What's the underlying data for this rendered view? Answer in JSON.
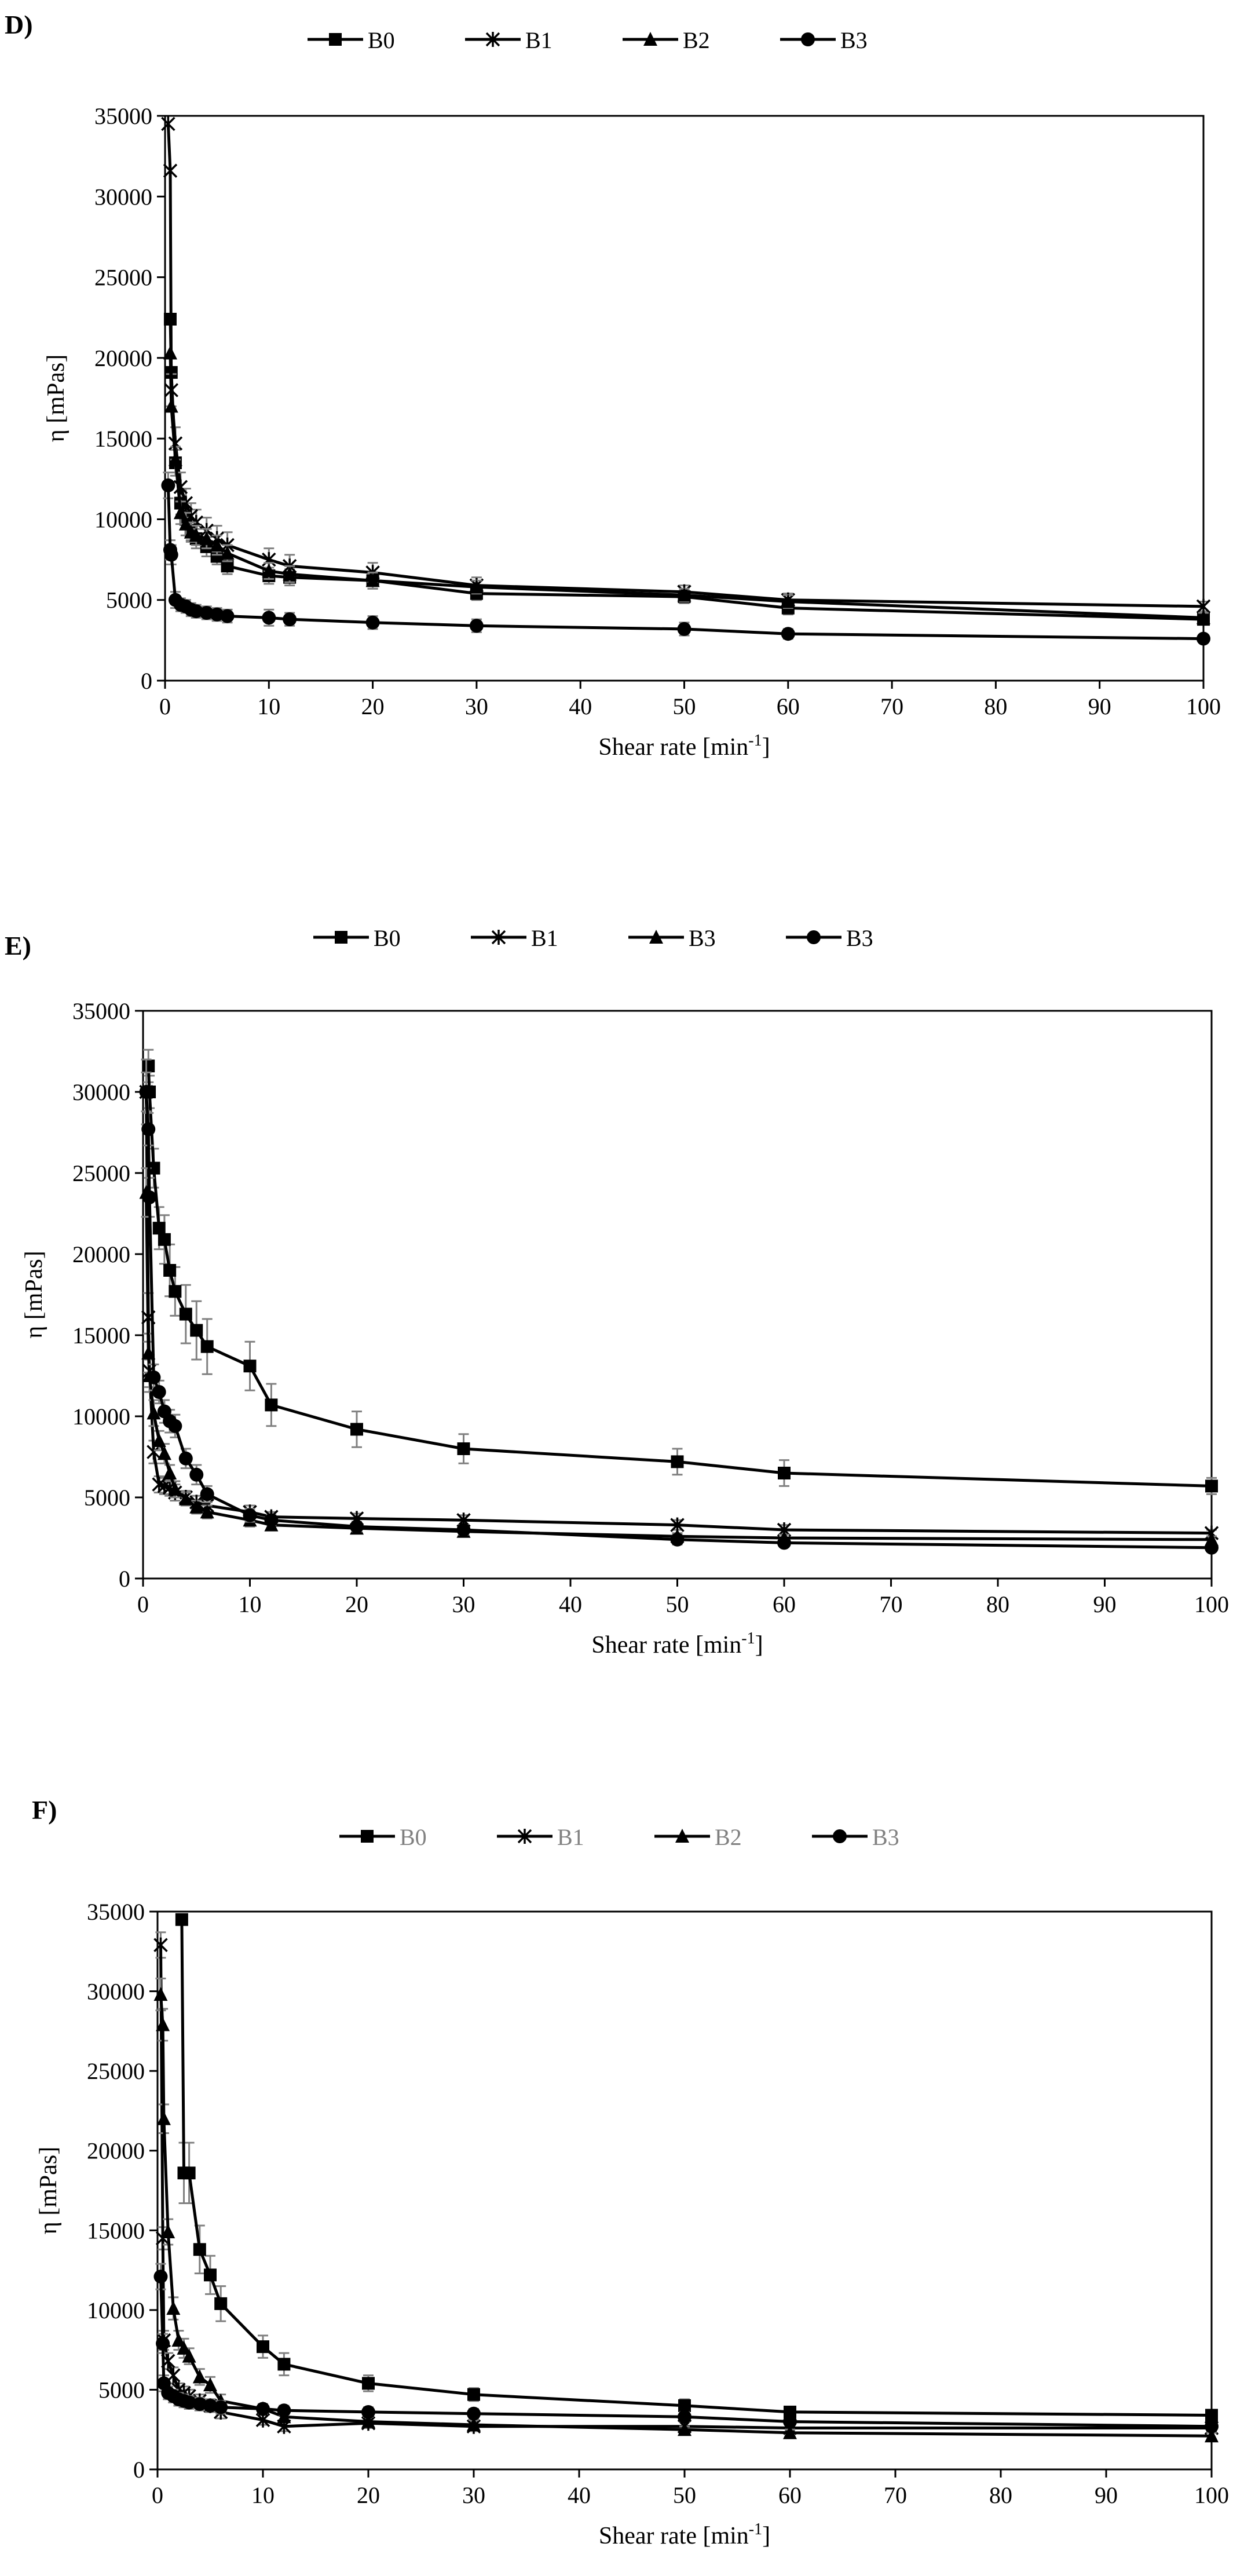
{
  "colors": {
    "line": "#000000",
    "marker": "#000000",
    "errorbar": "#808080",
    "legend_text_dark": "#000000",
    "legend_text_gray": "#808080"
  },
  "chart_data": [
    {
      "type": "line",
      "panel_label": "D)",
      "title": "",
      "xlabel": "Shear rate [min",
      "xlabel_sup": "-1",
      "xlabel_suffix": "]",
      "ylabel": "η [mPas]",
      "xlim": [
        0,
        100
      ],
      "ylim": [
        0,
        35000
      ],
      "x_ticks": [
        "0",
        "10",
        "20",
        "30",
        "40",
        "50",
        "60",
        "70",
        "80",
        "90",
        "100"
      ],
      "y_ticks": [
        "0",
        "5000",
        "10000",
        "15000",
        "20000",
        "25000",
        "30000",
        "35000"
      ],
      "legend_position": "top",
      "legend_text_color": "dark",
      "series": [
        {
          "name": "B0",
          "marker": "square",
          "x": [
            0.5,
            0.6,
            1,
            1.5,
            2,
            2.5,
            3,
            4,
            5,
            6,
            10,
            12,
            20,
            30,
            50,
            60,
            100
          ],
          "y": [
            22400,
            19100,
            13500,
            11000,
            10000,
            9300,
            8800,
            8300,
            7700,
            7100,
            6500,
            6400,
            6200,
            5400,
            5200,
            4500,
            3800
          ],
          "err": [
            0,
            0,
            800,
            700,
            600,
            600,
            600,
            600,
            500,
            500,
            500,
            500,
            500,
            400,
            400,
            400,
            300
          ]
        },
        {
          "name": "B1",
          "marker": "star",
          "x": [
            0.3,
            0.5,
            0.6,
            1,
            1.5,
            2,
            2.5,
            3,
            4,
            5,
            6,
            10,
            12,
            20,
            30,
            50,
            60,
            100
          ],
          "y": [
            34500,
            31600,
            18000,
            14700,
            12000,
            11000,
            10200,
            9800,
            9300,
            8800,
            8400,
            7500,
            7100,
            6700,
            5900,
            5500,
            5000,
            4600
          ],
          "err": [
            0,
            0,
            1000,
            1000,
            900,
            900,
            800,
            800,
            800,
            800,
            800,
            700,
            700,
            600,
            500,
            400,
            400,
            300
          ]
        },
        {
          "name": "B2",
          "marker": "triangle",
          "x": [
            0.5,
            0.6,
            1,
            1.5,
            2,
            2.5,
            3,
            4,
            5,
            6,
            10,
            12,
            20,
            30,
            50,
            60,
            100
          ],
          "y": [
            20300,
            17000,
            13700,
            10400,
            9700,
            9200,
            9000,
            8800,
            8400,
            7900,
            6800,
            6600,
            6200,
            5800,
            5300,
            4900,
            3900
          ],
          "err": [
            0,
            0,
            800,
            700,
            700,
            600,
            600,
            600,
            600,
            500,
            500,
            500,
            500,
            400,
            400,
            400,
            300
          ]
        },
        {
          "name": "B3",
          "marker": "circle",
          "x": [
            0.3,
            0.5,
            0.6,
            1,
            1.5,
            2,
            2.5,
            3,
            4,
            5,
            6,
            10,
            12,
            20,
            30,
            50,
            60,
            100
          ],
          "y": [
            12100,
            8100,
            7800,
            5000,
            4700,
            4600,
            4400,
            4300,
            4200,
            4100,
            4000,
            3900,
            3800,
            3600,
            3400,
            3200,
            2900,
            2600
          ],
          "err": [
            800,
            600,
            600,
            500,
            400,
            400,
            400,
            400,
            400,
            400,
            400,
            500,
            400,
            400,
            400,
            400,
            300,
            200
          ]
        }
      ]
    },
    {
      "type": "line",
      "panel_label": "E)",
      "title": "",
      "xlabel": "Shear rate [min",
      "xlabel_sup": "-1",
      "xlabel_suffix": "]",
      "ylabel": "η [mPas]",
      "xlim": [
        0,
        100
      ],
      "ylim": [
        0,
        35000
      ],
      "x_ticks": [
        "0",
        "10",
        "20",
        "30",
        "40",
        "50",
        "60",
        "70",
        "80",
        "90",
        "100"
      ],
      "y_ticks": [
        "0",
        "5000",
        "10000",
        "15000",
        "20000",
        "25000",
        "30000",
        "35000"
      ],
      "legend_position": "top",
      "legend_text_color": "dark",
      "series": [
        {
          "name": "B0",
          "marker": "square",
          "x": [
            0.5,
            0.6,
            1,
            1.5,
            2,
            2.5,
            3,
            4,
            5,
            6,
            10,
            12,
            20,
            30,
            50,
            60,
            100
          ],
          "y": [
            31600,
            30000,
            25300,
            21600,
            20900,
            19000,
            17700,
            16300,
            15300,
            14300,
            13100,
            10700,
            9200,
            8000,
            7200,
            6500,
            5700
          ],
          "err": [
            1000,
            1000,
            1200,
            1300,
            1500,
            1600,
            1500,
            1800,
            1800,
            1700,
            1500,
            1300,
            1100,
            900,
            800,
            800,
            500
          ]
        },
        {
          "name": "B1",
          "marker": "star",
          "x": [
            0.3,
            0.5,
            0.6,
            1,
            1.5,
            2,
            2.5,
            3,
            4,
            5,
            6,
            10,
            12,
            20,
            30,
            50,
            60,
            100
          ],
          "y": [
            30000,
            16100,
            12800,
            7800,
            5800,
            5700,
            5600,
            5300,
            5000,
            4700,
            4500,
            4100,
            3800,
            3700,
            3600,
            3300,
            3000,
            2800
          ],
          "err": [
            2000,
            1500,
            1000,
            700,
            500,
            500,
            500,
            500,
            400,
            400,
            400,
            400,
            300,
            300,
            300,
            300,
            300,
            200
          ]
        },
        {
          "name": "B3",
          "marker": "triangle",
          "x": [
            0.3,
            0.5,
            0.6,
            1,
            1.5,
            2,
            2.5,
            3,
            4,
            5,
            6,
            10,
            12,
            20,
            30,
            50,
            60,
            100
          ],
          "y": [
            23800,
            13900,
            12500,
            10200,
            8500,
            7700,
            6500,
            5500,
            4900,
            4400,
            4100,
            3600,
            3300,
            3100,
            2900,
            2600,
            2500,
            2400
          ],
          "err": [
            1500,
            1200,
            1000,
            800,
            600,
            600,
            500,
            500,
            400,
            400,
            400,
            400,
            300,
            300,
            300,
            200,
            200,
            200
          ]
        },
        {
          "name": "B3",
          "marker": "circle",
          "x": [
            0.3,
            0.5,
            0.6,
            1,
            1.5,
            2,
            2.5,
            3,
            4,
            5,
            6,
            10,
            12,
            20,
            30,
            50,
            60,
            100
          ],
          "y": [
            30000,
            27700,
            23500,
            12400,
            11500,
            10300,
            9700,
            9400,
            7400,
            6400,
            5200,
            3900,
            3600,
            3200,
            3000,
            2400,
            2200,
            1900
          ],
          "err": [
            1200,
            1000,
            1200,
            800,
            700,
            700,
            700,
            700,
            600,
            600,
            500,
            400,
            300,
            300,
            300,
            300,
            200,
            200
          ]
        }
      ]
    },
    {
      "type": "line",
      "panel_label": "F)",
      "title": "",
      "xlabel": "Shear rate [min",
      "xlabel_sup": "-1",
      "xlabel_suffix": "]",
      "ylabel": "η [mPas]",
      "xlim": [
        0,
        100
      ],
      "ylim": [
        0,
        35000
      ],
      "x_ticks": [
        "0",
        "10",
        "20",
        "30",
        "40",
        "50",
        "60",
        "70",
        "80",
        "90",
        "100"
      ],
      "y_ticks": [
        "0",
        "5000",
        "10000",
        "15000",
        "20000",
        "25000",
        "30000",
        "35000"
      ],
      "legend_position": "top",
      "legend_text_color": "gray",
      "series": [
        {
          "name": "B0",
          "marker": "square",
          "x": [
            2.3,
            2.5,
            3,
            4,
            5,
            6,
            10,
            12,
            20,
            30,
            50,
            60,
            100
          ],
          "y": [
            34500,
            18600,
            18600,
            13800,
            12200,
            10400,
            7700,
            6600,
            5400,
            4700,
            4000,
            3600,
            3400
          ],
          "err": [
            0,
            1900,
            1900,
            1500,
            1200,
            1100,
            700,
            700,
            500,
            400,
            400,
            300,
            300
          ]
        },
        {
          "name": "B1",
          "marker": "star",
          "x": [
            0.3,
            0.5,
            0.6,
            1,
            1.5,
            2,
            2.5,
            3,
            4,
            5,
            6,
            10,
            12,
            20,
            30,
            50,
            60,
            100
          ],
          "y": [
            32900,
            14500,
            8100,
            6800,
            5900,
            5000,
            4800,
            4600,
            4300,
            4000,
            3600,
            3100,
            2700,
            2900,
            2700,
            2700,
            2600,
            2600
          ],
          "err": [
            800,
            700,
            600,
            500,
            500,
            400,
            400,
            400,
            400,
            400,
            400,
            300,
            300,
            300,
            300,
            300,
            200,
            200
          ]
        },
        {
          "name": "B2",
          "marker": "triangle",
          "x": [
            0.3,
            0.5,
            0.6,
            1,
            1.5,
            2,
            2.5,
            3,
            4,
            5,
            6,
            10,
            12,
            20,
            30,
            50,
            60,
            100
          ],
          "y": [
            29800,
            27900,
            22000,
            14900,
            10100,
            8100,
            7600,
            7100,
            5800,
            5300,
            4300,
            3800,
            3300,
            3000,
            2800,
            2500,
            2300,
            2100
          ],
          "err": [
            1000,
            1000,
            900,
            800,
            700,
            600,
            600,
            500,
            500,
            500,
            400,
            300,
            300,
            300,
            300,
            200,
            200,
            200
          ]
        },
        {
          "name": "B3",
          "marker": "circle",
          "x": [
            0.3,
            0.5,
            0.6,
            1,
            1.5,
            2,
            2.5,
            3,
            4,
            5,
            6,
            10,
            12,
            20,
            30,
            50,
            60,
            100
          ],
          "y": [
            12100,
            7900,
            5400,
            4800,
            4600,
            4400,
            4300,
            4200,
            4100,
            4000,
            3900,
            3800,
            3700,
            3600,
            3500,
            3300,
            3000,
            2700
          ],
          "err": [
            800,
            600,
            500,
            400,
            400,
            400,
            400,
            400,
            400,
            400,
            400,
            300,
            300,
            300,
            300,
            300,
            200,
            200
          ]
        }
      ]
    }
  ]
}
